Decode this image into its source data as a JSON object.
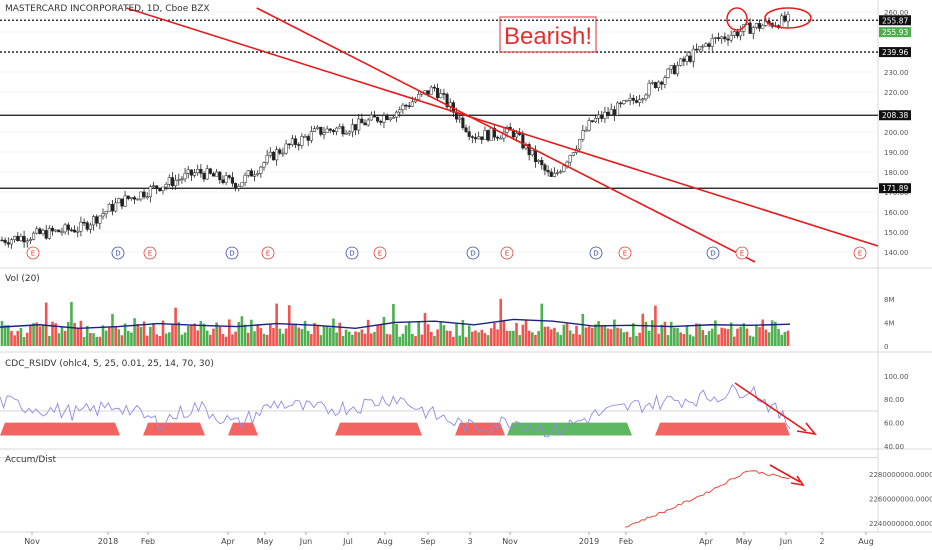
{
  "header": {
    "title": "MASTERCARD INCORPORATED, 1D, Cboe BZX"
  },
  "annotation": {
    "text": "Bearish!"
  },
  "colors": {
    "up": "#4caf50",
    "down": "#f05350",
    "trend": "#e8191b",
    "sma": "#1a237e",
    "rsi": "#8c8ce6",
    "accum": "#ef3b2c",
    "event_e": "#e53935",
    "event_d": "#3949ab"
  },
  "price_axis": {
    "ticks": [
      "260.00",
      "250.00",
      "240.00",
      "230.00",
      "220.00",
      "210.00",
      "200.00",
      "190.00",
      "180.00",
      "170.00",
      "160.00",
      "150.00",
      "140.00"
    ],
    "tags": [
      {
        "label": "255.87",
        "bg": "#111111",
        "fg": "#ffffff"
      },
      {
        "label": "255.93",
        "bg": "#4caf50",
        "fg": "#ffffff"
      },
      {
        "label": "239.96",
        "bg": "#111111",
        "fg": "#ffffff"
      },
      {
        "label": "208.38",
        "bg": "#111111",
        "fg": "#ffffff"
      },
      {
        "label": "171.89",
        "bg": "#111111",
        "fg": "#ffffff"
      }
    ]
  },
  "events": {
    "E": "E",
    "D": "D"
  },
  "volume": {
    "label": "Vol (20)",
    "ticks": [
      "8M",
      "4M",
      "0"
    ]
  },
  "rsi": {
    "label": "CDC_RSIDV (ohlc4, 5, 25, 0.01, 25, 14, 70, 30)",
    "ticks": [
      "100.00",
      "80.00",
      "60.00",
      "40.00"
    ]
  },
  "accum": {
    "label": "Accum/Dist",
    "ticks": [
      "2280000000.0000",
      "2260000000.0000",
      "2240000000.0000"
    ]
  },
  "x_axis": {
    "ticks": [
      "Nov",
      "2018",
      "Feb",
      "Apr",
      "May",
      "Jun",
      "Jul",
      "Aug",
      "Sep",
      "3",
      "Nov",
      "2019",
      "Feb",
      "Apr",
      "May",
      "Jun",
      "2",
      "Aug"
    ]
  },
  "chart_data": {
    "type": "candlestick",
    "title": "MASTERCARD INCORPORATED, 1D, Cboe BZX",
    "price_close_path": [
      {
        "x": "Oct 2017",
        "y": 146
      },
      {
        "x": "Nov 2017",
        "y": 149
      },
      {
        "x": "Dec 2017",
        "y": 152
      },
      {
        "x": "Jan 2018",
        "y": 165
      },
      {
        "x": "Feb 2018",
        "y": 173
      },
      {
        "x": "Mar 2018",
        "y": 180
      },
      {
        "x": "Apr 2018",
        "y": 174
      },
      {
        "x": "May 2018",
        "y": 190
      },
      {
        "x": "Jun 2018",
        "y": 200
      },
      {
        "x": "Jul 2018",
        "y": 203
      },
      {
        "x": "Aug 2018",
        "y": 210
      },
      {
        "x": "Sep 2018",
        "y": 222
      },
      {
        "x": "Oct 2018",
        "y": 198
      },
      {
        "x": "Nov 2018",
        "y": 200
      },
      {
        "x": "Dec 2018",
        "y": 176
      },
      {
        "x": "Jan 2019",
        "y": 205
      },
      {
        "x": "Feb 2019",
        "y": 215
      },
      {
        "x": "Mar 2019",
        "y": 230
      },
      {
        "x": "Apr 2019",
        "y": 245
      },
      {
        "x": "May 2019",
        "y": 252
      },
      {
        "x": "Jun 2019",
        "y": 255.93
      }
    ],
    "horizontal_levels": [
      255.87,
      239.96,
      208.38,
      171.89
    ],
    "price_range": [
      135,
      262
    ],
    "rsi_range": [
      40,
      105
    ],
    "volume_range_millions": [
      0,
      10
    ],
    "accum_range": [
      2236000000,
      2288000000
    ],
    "volume_sma_millions": [
      3.2,
      3.6,
      3.0,
      3.3,
      3.8,
      3.5,
      3.3,
      3.8,
      3.5,
      3.0,
      4.0,
      4.2,
      3.6,
      4.5,
      4.2,
      3.4,
      3.5,
      3.3,
      3.6,
      3.5,
      3.7
    ],
    "rsi_values": [
      78,
      72,
      68,
      75,
      60,
      74,
      58,
      77,
      71,
      74,
      82,
      66,
      55,
      62,
      52,
      66,
      74,
      79,
      82,
      90,
      58
    ],
    "accum_path": [
      {
        "x": "Feb 2019",
        "y": 2237000000
      },
      {
        "x": "Mar 2019",
        "y": 2250000000
      },
      {
        "x": "Apr 2019",
        "y": 2265000000
      },
      {
        "x": "May 2019",
        "y": 2283000000
      },
      {
        "x": "Jun 2019",
        "y": 2276000000
      }
    ]
  }
}
